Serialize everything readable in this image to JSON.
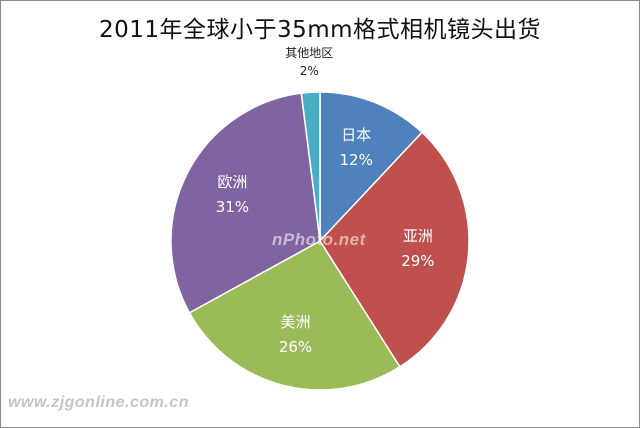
{
  "watermark_text": "nPhoto.net",
  "site_watermark": "www.zjgonline.com.cn",
  "chart_data": {
    "type": "pie",
    "title": "2011年全球小于35mm格式相机镜头出货",
    "categories": [
      "日本",
      "亚洲",
      "美洲",
      "欧洲",
      "其他地区"
    ],
    "values": [
      12,
      29,
      26,
      31,
      2
    ],
    "labels": [
      "12%",
      "29%",
      "26%",
      "31%",
      "2%"
    ],
    "colors": [
      "#4f81bd",
      "#c0504d",
      "#9bbb59",
      "#8064a2",
      "#4bacc6"
    ],
    "start_angle": "12 o'clock",
    "direction": "clockwise",
    "legend": "none"
  }
}
